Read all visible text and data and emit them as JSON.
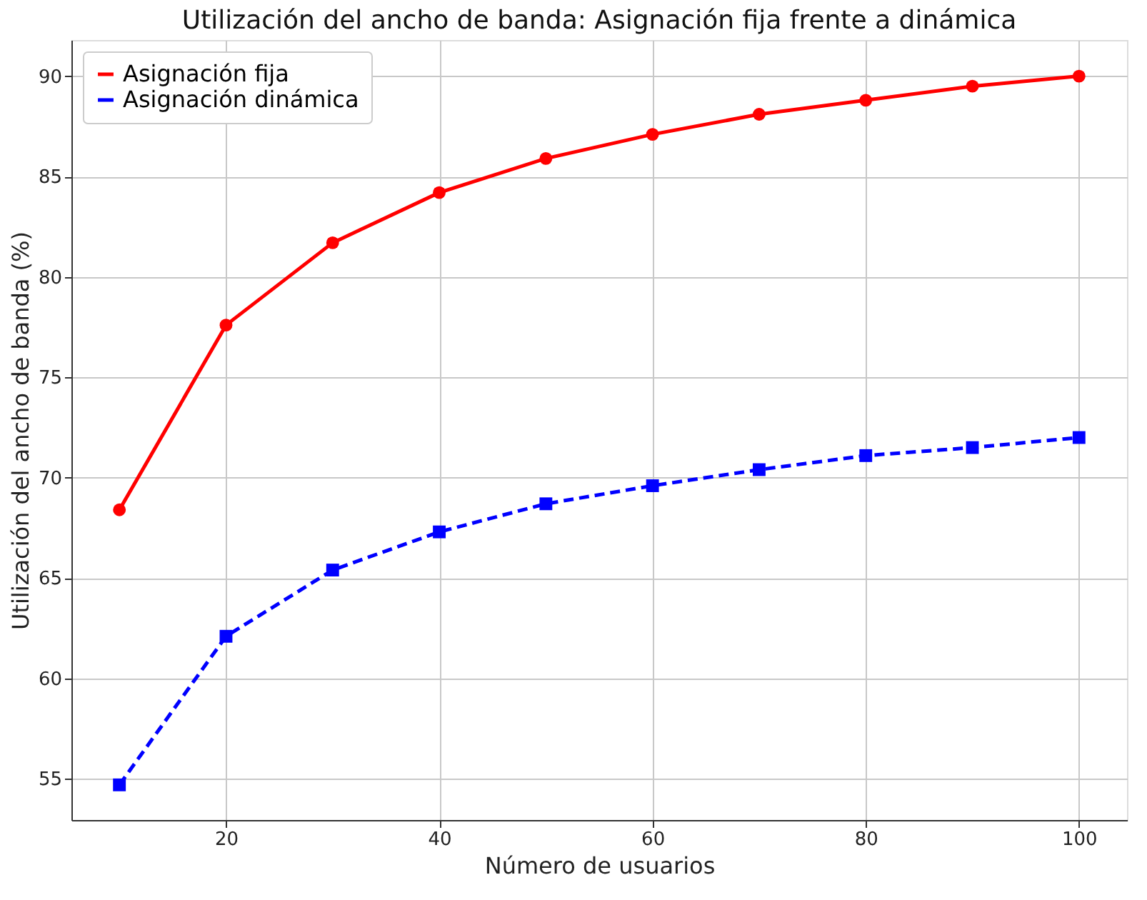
{
  "chart_data": {
    "type": "line",
    "title": "Utilización del ancho de banda: Asignación fija frente a dinámica",
    "xlabel": "Número de usuarios",
    "ylabel": "Utilización del ancho de banda (%)",
    "x": [
      10,
      20,
      30,
      40,
      50,
      60,
      70,
      80,
      90,
      100
    ],
    "series": [
      {
        "name": "Asignación fija",
        "color": "#ff0000",
        "marker": "circle",
        "line_style": "solid",
        "values": [
          68.4,
          77.6,
          81.7,
          84.2,
          85.9,
          87.1,
          88.1,
          88.8,
          89.5,
          90.0
        ]
      },
      {
        "name": "Asignación dinámica",
        "color": "#0000ff",
        "marker": "square",
        "line_style": "dashed",
        "values": [
          54.7,
          62.1,
          65.4,
          67.3,
          68.7,
          69.6,
          70.4,
          71.1,
          71.5,
          72.0
        ]
      }
    ],
    "xlim": [
      5.5,
      104.5
    ],
    "xticks": [
      20,
      40,
      60,
      80,
      100
    ],
    "ylim": [
      52.95,
      91.8
    ],
    "yticks": [
      55,
      60,
      65,
      70,
      75,
      80,
      85,
      90
    ],
    "grid": true,
    "legend": "top left"
  }
}
